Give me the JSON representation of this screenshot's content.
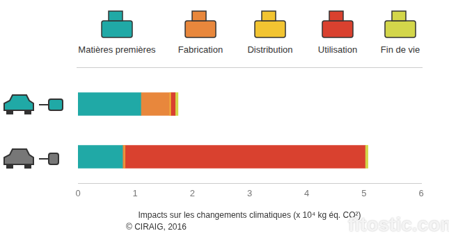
{
  "chart_data": {
    "type": "bar",
    "orientation": "horizontal",
    "stacked": true,
    "grid": false,
    "data_labels": false,
    "tick_labels": "x",
    "legend": "top",
    "categories": [
      null,
      null
    ],
    "series": [
      {
        "name": "Matières premières",
        "color": "#20a9a6",
        "values": [
          1.1,
          0.78
        ]
      },
      {
        "name": "Fabrication",
        "color": "#e8873c",
        "values": [
          0.5,
          0.03
        ]
      },
      {
        "name": "Distribution",
        "color": "#f2c431",
        "values": [
          0.02,
          0.01
        ]
      },
      {
        "name": "Utilisation",
        "color": "#d9412f",
        "values": [
          0.08,
          4.2
        ]
      },
      {
        "name": "Fin de vie",
        "color": "#d3d64a",
        "values": [
          0.05,
          0.05
        ]
      }
    ],
    "xlim": [
      0,
      6
    ],
    "xticks": [
      0,
      1,
      2,
      3,
      4,
      5,
      6
    ],
    "x_label": "Impacts sur les changements climatiques (x 10⁴ kg éq. CO²)",
    "source": "© CIRAIG, 2016",
    "watermark": "fitostic.com"
  }
}
